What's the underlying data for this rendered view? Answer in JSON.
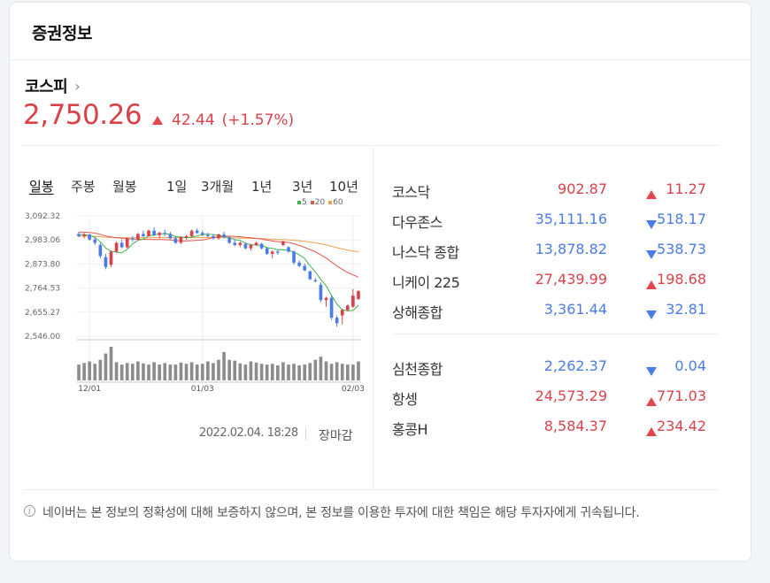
{
  "card": {
    "title": "증권정보"
  },
  "kospi": {
    "name": "코스피",
    "value": "2,750.26",
    "change": "42.44",
    "change_pct": "(+1.57%)",
    "direction": "up"
  },
  "tabs": [
    {
      "label": "일봉",
      "active": true
    },
    {
      "label": "주봉"
    },
    {
      "label": "월봉"
    },
    {
      "label": "1일"
    },
    {
      "label": "3개월"
    },
    {
      "label": "1년"
    },
    {
      "label": "3년"
    },
    {
      "label": "10년"
    }
  ],
  "chart_data": {
    "type": "candlestick",
    "y_ticks": [
      "3,092.32",
      "2,983.06",
      "2,873.80",
      "2,764.53",
      "2,655.27",
      "2,546.00"
    ],
    "ylim": [
      2546.0,
      3092.32
    ],
    "x_ticks": [
      "12/01",
      "01/03",
      "02/03"
    ],
    "legend": [
      {
        "label": "5",
        "color": "#3cb44a"
      },
      {
        "label": "20",
        "color": "#e8554e"
      },
      {
        "label": "60",
        "color": "#f0a04b"
      }
    ],
    "candles": [
      [
        3010,
        3020,
        2995,
        3000
      ],
      [
        3000,
        3015,
        2990,
        3008
      ],
      [
        3008,
        3010,
        2980,
        2985
      ],
      [
        2985,
        2995,
        2960,
        2970
      ],
      [
        2960,
        2970,
        2900,
        2910
      ],
      [
        2905,
        2920,
        2850,
        2860
      ],
      [
        2870,
        2935,
        2860,
        2930
      ],
      [
        2930,
        2975,
        2925,
        2970
      ],
      [
        2970,
        2985,
        2945,
        2950
      ],
      [
        2950,
        2995,
        2945,
        2990
      ],
      [
        2990,
        3000,
        2975,
        2985
      ],
      [
        2985,
        3015,
        2980,
        3010
      ],
      [
        3010,
        3025,
        2995,
        3000
      ],
      [
        3000,
        3030,
        2998,
        3025
      ],
      [
        3025,
        3040,
        3000,
        3005
      ],
      [
        3005,
        3020,
        2990,
        3015
      ],
      [
        3015,
        3030,
        3000,
        3010
      ],
      [
        3010,
        3020,
        2985,
        2990
      ],
      [
        2990,
        3000,
        2965,
        2970
      ],
      [
        2970,
        3000,
        2965,
        2995
      ],
      [
        2995,
        3005,
        2985,
        3000
      ],
      [
        3000,
        3030,
        2995,
        3025
      ],
      [
        3025,
        3035,
        3010,
        3015
      ],
      [
        3015,
        3025,
        3000,
        3005
      ],
      [
        3005,
        3015,
        2995,
        3000
      ],
      [
        3000,
        3010,
        2985,
        2990
      ],
      [
        2990,
        3012,
        2985,
        3008
      ],
      [
        3008,
        3020,
        2990,
        2995
      ],
      [
        2995,
        3000,
        2965,
        2970
      ],
      [
        2970,
        2985,
        2955,
        2960
      ],
      [
        2960,
        2975,
        2950,
        2970
      ],
      [
        2965,
        2970,
        2940,
        2945
      ],
      [
        2945,
        2965,
        2935,
        2960
      ],
      [
        2960,
        2975,
        2955,
        2970
      ],
      [
        2965,
        2970,
        2940,
        2945
      ],
      [
        2945,
        2950,
        2915,
        2920
      ],
      [
        2920,
        2935,
        2900,
        2930
      ],
      [
        2930,
        2940,
        2915,
        2925
      ],
      [
        2960,
        2980,
        2955,
        2975
      ],
      [
        2950,
        2955,
        2925,
        2930
      ],
      [
        2930,
        2935,
        2870,
        2880
      ],
      [
        2880,
        2890,
        2860,
        2865
      ],
      [
        2865,
        2875,
        2840,
        2845
      ],
      [
        2840,
        2845,
        2800,
        2805
      ],
      [
        2800,
        2810,
        2790,
        2795
      ],
      [
        2780,
        2790,
        2700,
        2710
      ],
      [
        2710,
        2725,
        2680,
        2720
      ],
      [
        2720,
        2730,
        2620,
        2630
      ],
      [
        2630,
        2640,
        2590,
        2605
      ],
      [
        2640,
        2670,
        2600,
        2665
      ],
      [
        2665,
        2690,
        2660,
        2685
      ],
      [
        2680,
        2760,
        2675,
        2730
      ],
      [
        2715,
        2755,
        2710,
        2750
      ]
    ],
    "volume": [
      40,
      44,
      48,
      42,
      52,
      68,
      85,
      46,
      40,
      44,
      42,
      48,
      43,
      40,
      46,
      40,
      44,
      40,
      40,
      45,
      42,
      46,
      40,
      42,
      48,
      44,
      52,
      72,
      52,
      50,
      43,
      40,
      48,
      45,
      42,
      40,
      42,
      38,
      46,
      40,
      42,
      38,
      40,
      44,
      52,
      60,
      48,
      42,
      46,
      42,
      40,
      40,
      48
    ]
  },
  "chart_footer": {
    "date": "2022.02.04. 18:28",
    "status": "장마감"
  },
  "indices_group1": [
    {
      "name": "코스닥",
      "price": "902.87",
      "change": "11.27",
      "direction": "up"
    },
    {
      "name": "다우존스",
      "price": "35,111.16",
      "change": "518.17",
      "direction": "down"
    },
    {
      "name": "나스닥 종합",
      "price": "13,878.82",
      "change": "538.73",
      "direction": "down"
    },
    {
      "name": "니케이 225",
      "price": "27,439.99",
      "change": "198.68",
      "direction": "up"
    },
    {
      "name": "상해종합",
      "price": "3,361.44",
      "change": "32.81",
      "direction": "down"
    }
  ],
  "indices_group2": [
    {
      "name": "심천종합",
      "price": "2,262.37",
      "change": "0.04",
      "direction": "down"
    },
    {
      "name": "항셍",
      "price": "24,573.29",
      "change": "771.03",
      "direction": "up"
    },
    {
      "name": "홍콩H",
      "price": "8,584.37",
      "change": "234.42",
      "direction": "up"
    }
  ],
  "notice": {
    "icon": "info-icon",
    "text": "네이버는 본 정보의 정확성에 대해 보증하지 않으며, 본 정보를 이용한 투자에 대한 책임은 해당 투자자에게 귀속됩니다."
  },
  "colors": {
    "up": "#d8434a",
    "down": "#4a7be6",
    "volume": "#8c8c8c"
  }
}
